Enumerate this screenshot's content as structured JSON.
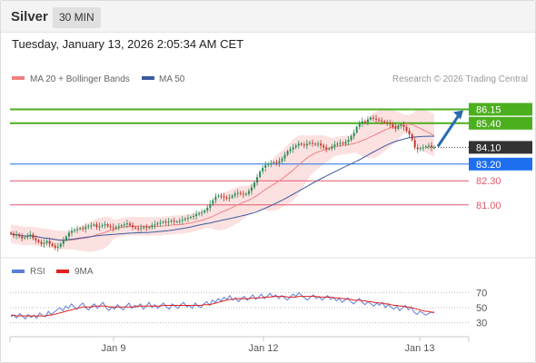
{
  "header": {
    "instrument": "Silver",
    "interval": "30 MIN"
  },
  "timestamp": "Tuesday, January 13, 2026 2:05:34 AM CET",
  "colors": {
    "ma20": "#f08080",
    "ma50": "#3d5a9e",
    "bollinger_fill": "#fcdcdc",
    "up_candle": "#2e8b57",
    "down_candle": "#c0392b",
    "resistance": "#4caf1e",
    "pivot": "#1e6ff0",
    "support": "#e05a6a",
    "last_price": "#333333",
    "arrow": "#2a6ab0",
    "rsi": "#5b7fd8",
    "rsi_ma": "#e02020"
  },
  "chart_data": [
    {
      "type": "candlestick",
      "legend": [
        {
          "label": "MA 20 + Bollinger Bands",
          "color": "#f08080"
        },
        {
          "label": "MA 50",
          "color": "#3d5a9e"
        }
      ],
      "credit": "Research © 2026 Trading Central",
      "x_ticks": [
        "Jan 9",
        "Jan 12",
        "Jan 13"
      ],
      "ylim": [
        78.3,
        87.2
      ],
      "price_levels": [
        {
          "label": "86.15",
          "value": 86.15,
          "kind": "resistance"
        },
        {
          "label": "85.40",
          "value": 85.4,
          "kind": "resistance"
        },
        {
          "label": "84.10",
          "value": 84.1,
          "kind": "last"
        },
        {
          "label": "83.20",
          "value": 83.2,
          "kind": "pivot"
        },
        {
          "label": "82.30",
          "value": 82.3,
          "kind": "support"
        },
        {
          "label": "81.00",
          "value": 81.0,
          "kind": "support"
        }
      ],
      "close": [
        79.45,
        79.35,
        79.4,
        79.3,
        79.2,
        79.25,
        79.35,
        79.4,
        79.2,
        79.1,
        79.0,
        78.9,
        78.95,
        79.05,
        78.9,
        78.8,
        78.7,
        78.75,
        78.9,
        79.1,
        79.3,
        79.5,
        79.6,
        79.65,
        79.7,
        79.75,
        79.7,
        79.8,
        79.85,
        79.9,
        79.95,
        79.8,
        79.85,
        79.9,
        79.95,
        79.85,
        79.8,
        79.75,
        79.8,
        79.85,
        79.9,
        79.95,
        80.0,
        79.9,
        79.8,
        79.75,
        79.7,
        79.75,
        79.8,
        79.75,
        79.8,
        79.9,
        79.95,
        80.0,
        80.05,
        80.1,
        80.05,
        80.1,
        80.15,
        80.1,
        80.1,
        80.15,
        80.2,
        80.25,
        80.3,
        80.35,
        80.4,
        80.5,
        80.55,
        80.6,
        80.7,
        80.85,
        81.05,
        81.25,
        81.45,
        81.5,
        81.45,
        81.4,
        81.35,
        81.4,
        81.5,
        81.6,
        81.65,
        81.6,
        81.55,
        81.6,
        81.75,
        81.95,
        82.2,
        82.5,
        82.8,
        83.0,
        83.15,
        83.2,
        83.25,
        83.3,
        83.25,
        83.35,
        83.5,
        83.7,
        83.9,
        84.0,
        84.1,
        84.2,
        84.3,
        84.25,
        84.2,
        84.3,
        84.35,
        84.3,
        84.25,
        84.3,
        84.2,
        84.1,
        84.0,
        84.05,
        84.15,
        84.25,
        84.3,
        84.35,
        84.3,
        84.4,
        84.5,
        84.7,
        84.9,
        85.2,
        85.4,
        85.5,
        85.45,
        85.6,
        85.7,
        85.65,
        85.6,
        85.55,
        85.5,
        85.45,
        85.4,
        85.35,
        85.2,
        85.1,
        85.25,
        85.3,
        85.2,
        85.0,
        84.8,
        84.5,
        84.1,
        84.0,
        84.05,
        84.1,
        84.15,
        84.2,
        84.1,
        84.1
      ]
    },
    {
      "type": "line",
      "legend": [
        {
          "label": "RSI",
          "color": "#5b7fd8"
        },
        {
          "label": "9MA",
          "color": "#e02020"
        }
      ],
      "levels": [
        70,
        50,
        30
      ],
      "ylim": [
        15,
        85
      ],
      "series": [
        {
          "name": "RSI",
          "values": [
            38,
            40,
            36,
            42,
            39,
            35,
            41,
            37,
            40,
            36,
            43,
            39,
            38,
            45,
            41,
            44,
            47,
            50,
            46,
            52,
            49,
            55,
            51,
            48,
            53,
            56,
            50,
            47,
            52,
            55,
            49,
            53,
            57,
            50,
            46,
            51,
            48,
            54,
            50,
            47,
            52,
            56,
            49,
            53,
            51,
            55,
            48,
            52,
            57,
            50,
            54,
            49,
            53,
            56,
            51,
            48,
            55,
            52,
            49,
            54,
            57,
            51,
            53,
            49,
            56,
            52,
            50,
            55,
            58,
            53,
            60,
            57,
            62,
            59,
            64,
            61,
            66,
            60,
            63,
            58,
            62,
            65,
            60,
            63,
            67,
            61,
            64,
            68,
            62,
            65,
            69,
            64,
            67,
            62,
            66,
            63,
            60,
            64,
            68,
            65,
            70,
            66,
            63,
            60,
            64,
            67,
            62,
            65,
            60,
            63,
            66,
            61,
            64,
            59,
            62,
            57,
            60,
            63,
            58,
            55,
            59,
            62,
            57,
            54,
            58,
            55,
            52,
            56,
            53,
            57,
            50,
            54,
            51,
            48,
            52,
            46,
            50,
            53,
            47,
            51,
            44,
            41,
            45,
            43,
            40,
            42,
            44,
            43
          ]
        },
        {
          "name": "9MA",
          "values": [
            40,
            40,
            39,
            39,
            39,
            39,
            39,
            39,
            39,
            39,
            39,
            39,
            39,
            40,
            40,
            41,
            42,
            43,
            44,
            45,
            46,
            47,
            48,
            49,
            50,
            51,
            51,
            51,
            51,
            52,
            52,
            52,
            52,
            52,
            51,
            51,
            51,
            51,
            51,
            51,
            51,
            51,
            51,
            51,
            52,
            52,
            52,
            52,
            52,
            52,
            52,
            52,
            52,
            53,
            53,
            53,
            53,
            53,
            53,
            53,
            53,
            53,
            53,
            53,
            53,
            53,
            53,
            54,
            54,
            54,
            55,
            56,
            57,
            58,
            59,
            60,
            61,
            61,
            62,
            62,
            62,
            62,
            62,
            62,
            63,
            63,
            63,
            63,
            64,
            64,
            64,
            65,
            65,
            65,
            65,
            65,
            64,
            64,
            64,
            64,
            65,
            65,
            65,
            65,
            65,
            65,
            65,
            64,
            64,
            64,
            64,
            64,
            63,
            63,
            63,
            62,
            62,
            61,
            61,
            60,
            60,
            60,
            59,
            59,
            58,
            58,
            57,
            57,
            56,
            56,
            55,
            55,
            54,
            53,
            53,
            52,
            52,
            51,
            51,
            50,
            49,
            48,
            47,
            46,
            45,
            45,
            44,
            44
          ]
        }
      ]
    }
  ]
}
